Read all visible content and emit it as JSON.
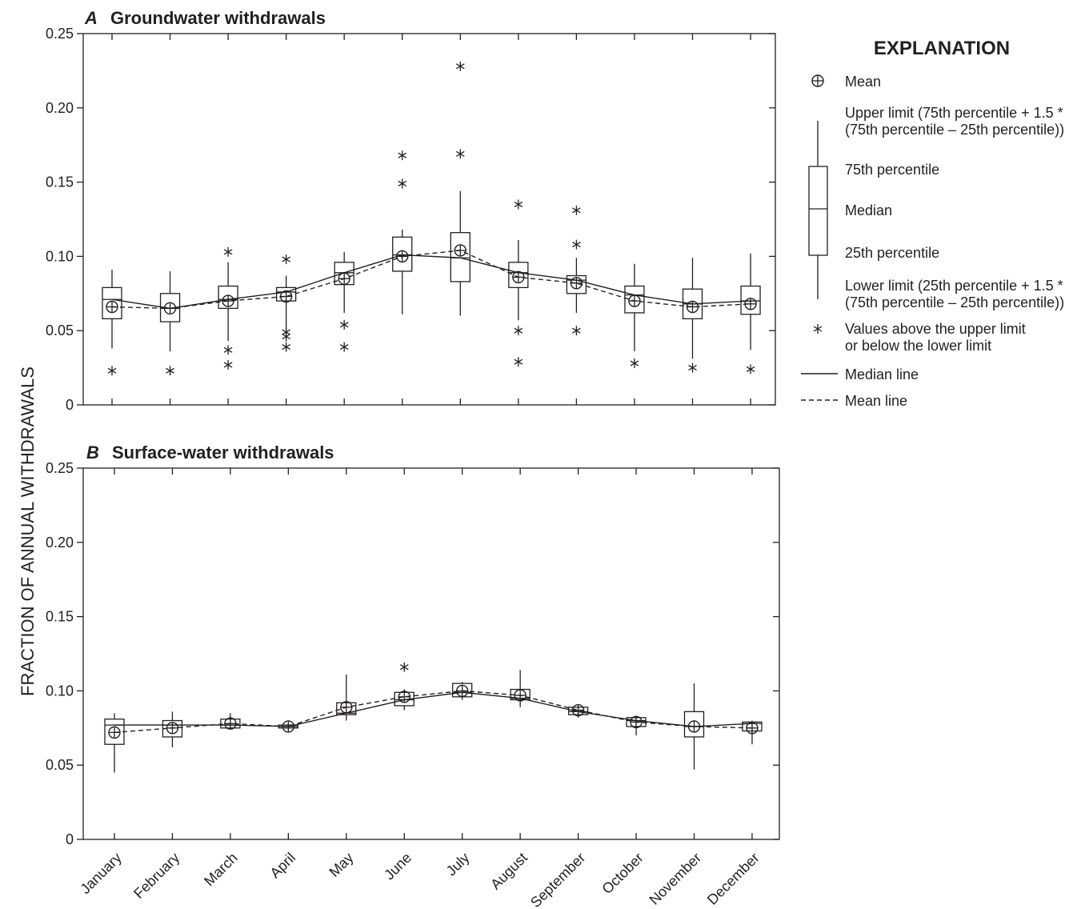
{
  "ylabel": "FRACTION OF ANNUAL WITHDRAWALS",
  "categories": [
    "January",
    "February",
    "March",
    "April",
    "May",
    "June",
    "July",
    "August",
    "September",
    "October",
    "November",
    "December"
  ],
  "chart_data": [
    {
      "type": "box",
      "letter": "A",
      "title": "Groundwater withdrawals",
      "ylim": [
        0,
        0.25
      ],
      "yticks": [
        0,
        0.05,
        0.1,
        0.15,
        0.2,
        0.25
      ],
      "ytick_labels": [
        "0",
        "0.05",
        "0.10",
        "0.15",
        "0.20",
        "0.25"
      ],
      "show_x_labels": false,
      "boxes": [
        {
          "month": "January",
          "lower": 0.038,
          "q1": 0.058,
          "median": 0.071,
          "q3": 0.079,
          "upper": 0.091,
          "mean": 0.066,
          "outliers": [
            0.023
          ]
        },
        {
          "month": "February",
          "lower": 0.036,
          "q1": 0.056,
          "median": 0.065,
          "q3": 0.075,
          "upper": 0.09,
          "mean": 0.065,
          "outliers": [
            0.023
          ]
        },
        {
          "month": "March",
          "lower": 0.043,
          "q1": 0.065,
          "median": 0.071,
          "q3": 0.08,
          "upper": 0.096,
          "mean": 0.07,
          "outliers": [
            0.103,
            0.037,
            0.027
          ]
        },
        {
          "month": "April",
          "lower": 0.05,
          "q1": 0.07,
          "median": 0.076,
          "q3": 0.079,
          "upper": 0.087,
          "mean": 0.073,
          "outliers": [
            0.098,
            0.049,
            0.046,
            0.039
          ]
        },
        {
          "month": "May",
          "lower": 0.062,
          "q1": 0.081,
          "median": 0.089,
          "q3": 0.096,
          "upper": 0.103,
          "mean": 0.085,
          "outliers": [
            0.054,
            0.039
          ]
        },
        {
          "month": "June",
          "lower": 0.061,
          "q1": 0.09,
          "median": 0.101,
          "q3": 0.113,
          "upper": 0.118,
          "mean": 0.1,
          "outliers": [
            0.168,
            0.149
          ]
        },
        {
          "month": "July",
          "lower": 0.06,
          "q1": 0.083,
          "median": 0.099,
          "q3": 0.116,
          "upper": 0.144,
          "mean": 0.104,
          "outliers": [
            0.228,
            0.169
          ]
        },
        {
          "month": "August",
          "lower": 0.057,
          "q1": 0.079,
          "median": 0.089,
          "q3": 0.096,
          "upper": 0.111,
          "mean": 0.086,
          "outliers": [
            0.135,
            0.05,
            0.029
          ]
        },
        {
          "month": "September",
          "lower": 0.062,
          "q1": 0.075,
          "median": 0.084,
          "q3": 0.087,
          "upper": 0.099,
          "mean": 0.082,
          "outliers": [
            0.131,
            0.108,
            0.05
          ]
        },
        {
          "month": "October",
          "lower": 0.036,
          "q1": 0.062,
          "median": 0.074,
          "q3": 0.08,
          "upper": 0.095,
          "mean": 0.07,
          "outliers": [
            0.028
          ]
        },
        {
          "month": "November",
          "lower": 0.031,
          "q1": 0.058,
          "median": 0.068,
          "q3": 0.078,
          "upper": 0.099,
          "mean": 0.066,
          "outliers": [
            0.025
          ]
        },
        {
          "month": "December",
          "lower": 0.037,
          "q1": 0.061,
          "median": 0.07,
          "q3": 0.08,
          "upper": 0.102,
          "mean": 0.068,
          "outliers": [
            0.024
          ]
        }
      ]
    },
    {
      "type": "box",
      "letter": "B",
      "title": "Surface-water withdrawals",
      "ylim": [
        0,
        0.25
      ],
      "yticks": [
        0,
        0.05,
        0.1,
        0.15,
        0.2,
        0.25
      ],
      "ytick_labels": [
        "0",
        "0.05",
        "0.10",
        "0.15",
        "0.20",
        "0.25"
      ],
      "show_x_labels": true,
      "boxes": [
        {
          "month": "January",
          "lower": 0.045,
          "q1": 0.064,
          "median": 0.077,
          "q3": 0.081,
          "upper": 0.085,
          "mean": 0.072,
          "outliers": []
        },
        {
          "month": "February",
          "lower": 0.062,
          "q1": 0.069,
          "median": 0.077,
          "q3": 0.08,
          "upper": 0.086,
          "mean": 0.075,
          "outliers": []
        },
        {
          "month": "March",
          "lower": 0.075,
          "q1": 0.075,
          "median": 0.077,
          "q3": 0.081,
          "upper": 0.085,
          "mean": 0.078,
          "outliers": []
        },
        {
          "month": "April",
          "lower": 0.074,
          "q1": 0.075,
          "median": 0.076,
          "q3": 0.077,
          "upper": 0.078,
          "mean": 0.076,
          "outliers": []
        },
        {
          "month": "May",
          "lower": 0.08,
          "q1": 0.084,
          "median": 0.085,
          "q3": 0.092,
          "upper": 0.111,
          "mean": 0.089,
          "outliers": []
        },
        {
          "month": "June",
          "lower": 0.087,
          "q1": 0.09,
          "median": 0.094,
          "q3": 0.099,
          "upper": 0.101,
          "mean": 0.096,
          "outliers": [
            0.116
          ]
        },
        {
          "month": "July",
          "lower": 0.094,
          "q1": 0.096,
          "median": 0.099,
          "q3": 0.105,
          "upper": 0.106,
          "mean": 0.1,
          "outliers": []
        },
        {
          "month": "August",
          "lower": 0.089,
          "q1": 0.094,
          "median": 0.095,
          "q3": 0.101,
          "upper": 0.114,
          "mean": 0.097,
          "outliers": []
        },
        {
          "month": "September",
          "lower": 0.082,
          "q1": 0.084,
          "median": 0.086,
          "q3": 0.089,
          "upper": 0.09,
          "mean": 0.087,
          "outliers": []
        },
        {
          "month": "October",
          "lower": 0.07,
          "q1": 0.076,
          "median": 0.08,
          "q3": 0.082,
          "upper": 0.083,
          "mean": 0.079,
          "outliers": []
        },
        {
          "month": "November",
          "lower": 0.047,
          "q1": 0.069,
          "median": 0.076,
          "q3": 0.086,
          "upper": 0.105,
          "mean": 0.076,
          "outliers": []
        },
        {
          "month": "December",
          "lower": 0.064,
          "q1": 0.073,
          "median": 0.078,
          "q3": 0.079,
          "upper": 0.08,
          "mean": 0.075,
          "outliers": []
        }
      ]
    }
  ],
  "legend": {
    "title": "EXPLANATION",
    "mean": "Mean",
    "upper_limit_1": "Upper limit (75th percentile + 1.5 *",
    "upper_limit_2": "(75th percentile – 25th percentile))",
    "p75": "75th percentile",
    "median": "Median",
    "p25": "25th percentile",
    "lower_limit_1": "Lower limit (25th percentile + 1.5 *",
    "lower_limit_2": "(75th percentile – 25th percentile))",
    "outliers_1": "Values above the upper limit",
    "outliers_2": "or below the lower limit",
    "median_line": "Median line",
    "mean_line": "Mean line"
  }
}
